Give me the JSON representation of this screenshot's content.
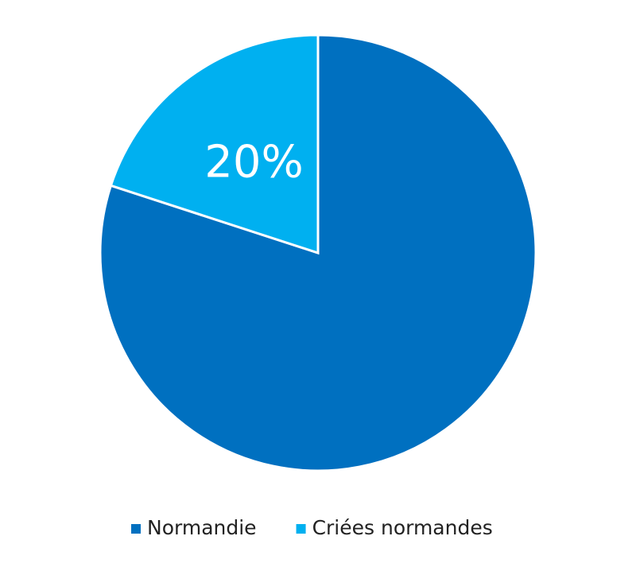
{
  "chart_data": {
    "type": "pie",
    "categories": [
      "Normandie",
      "Criées normandes"
    ],
    "values": [
      80,
      20
    ],
    "value_labels": [
      null,
      "20%"
    ],
    "colors": [
      "#0070c0",
      "#00b0f0"
    ],
    "legend": "bottom"
  }
}
